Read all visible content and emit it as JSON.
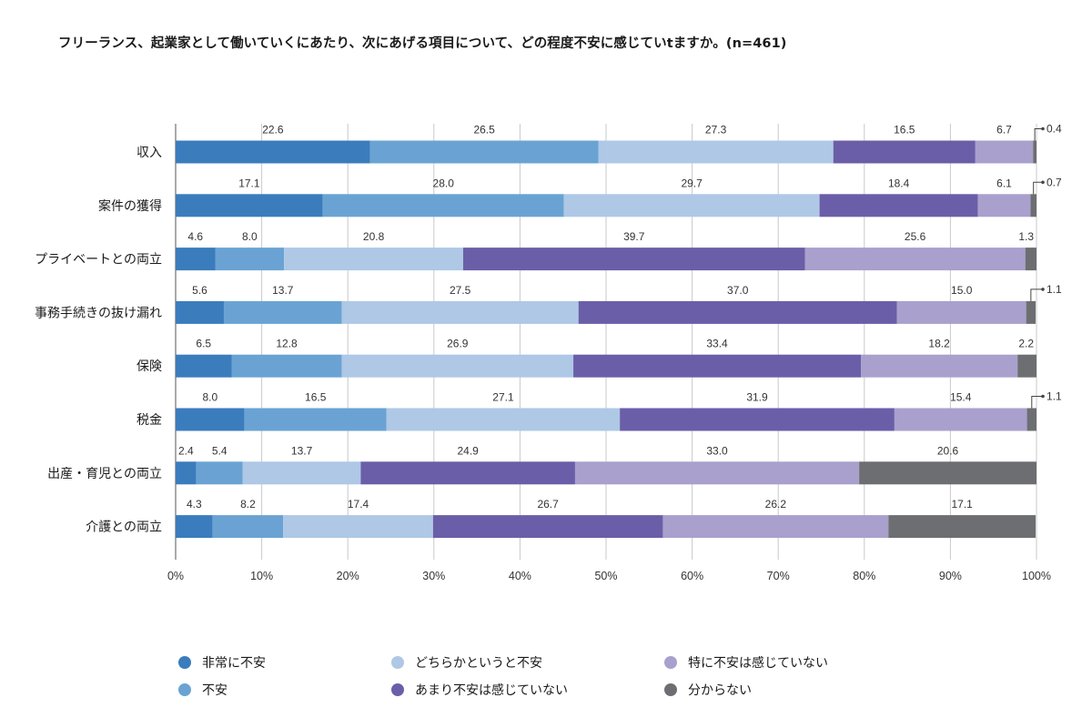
{
  "chart_data": {
    "type": "bar",
    "orientation": "horizontal-stacked-100",
    "title": "フリーランス、起業家として働いていくにあたり、次にあげる項目について、どの程度不安に感じていtますか。(n=461)",
    "categories": [
      "収入",
      "案件の獲得",
      "プライベートとの両立",
      "事務手続きの抜け漏れ",
      "保険",
      "税金",
      "出産・育児との両立",
      "介護との両立"
    ],
    "series": [
      {
        "name": "非常に不安",
        "color": "#3b7cbd",
        "values": [
          22.6,
          17.1,
          4.6,
          5.6,
          6.5,
          8.0,
          2.4,
          4.3
        ],
        "labels": [
          "22.6",
          "17.1",
          "4.6",
          "5.6",
          "6.5",
          "8.0",
          "2.4",
          "4.3"
        ]
      },
      {
        "name": "不安",
        "color": "#6aa3d3",
        "values": [
          26.5,
          28.0,
          8.0,
          13.7,
          12.8,
          16.5,
          5.4,
          8.2
        ],
        "labels": [
          "26.5",
          "28.0",
          "8.0",
          "13.7",
          "12.8",
          "16.5",
          "5.4",
          "8.2"
        ]
      },
      {
        "name": "どちらかというと不安",
        "color": "#aec8e6",
        "values": [
          27.3,
          29.7,
          20.8,
          27.5,
          26.9,
          27.1,
          13.7,
          17.4
        ],
        "labels": [
          "27.3",
          "29.7",
          "20.8",
          "27.5",
          "26.9",
          "27.1",
          "13.7",
          "17.4"
        ]
      },
      {
        "name": "あまり不安は感じていない",
        "color": "#6b5ea8",
        "values": [
          16.5,
          18.4,
          39.7,
          37.0,
          33.4,
          31.9,
          24.9,
          26.7
        ],
        "labels": [
          "16.5",
          "18.4",
          "39.7",
          "37.0",
          "33.4",
          "31.9",
          "24.9",
          "26.7"
        ]
      },
      {
        "name": "特に不安は感じていない",
        "color": "#a9a0cd",
        "values": [
          6.7,
          6.1,
          25.6,
          15.0,
          18.2,
          15.4,
          33.0,
          26.2
        ],
        "labels": [
          "6.7",
          "6.1",
          "25.6",
          "15.0",
          "18.2",
          "15.4",
          "33.0",
          "26.2"
        ]
      },
      {
        "name": "分からない",
        "color": "#6d6e72",
        "values": [
          0.4,
          0.7,
          1.3,
          1.1,
          2.2,
          1.1,
          20.6,
          17.1
        ],
        "labels": [
          "0.4",
          "0.7",
          "1.3",
          "1.1",
          "2.2",
          "1.1",
          "20.6",
          "17.1"
        ]
      }
    ],
    "xlim": [
      0,
      100
    ],
    "xticks": [
      "0%",
      "10%",
      "20%",
      "30%",
      "40%",
      "50%",
      "60%",
      "70%",
      "80%",
      "90%",
      "100%"
    ],
    "grid": true,
    "legend_position": "bottom",
    "legend_order": [
      [
        "非常に不安",
        "不安"
      ],
      [
        "どちらかというと不安",
        "あまり不安は感じていない"
      ],
      [
        "特に不安は感じていない",
        "分からない"
      ]
    ]
  }
}
